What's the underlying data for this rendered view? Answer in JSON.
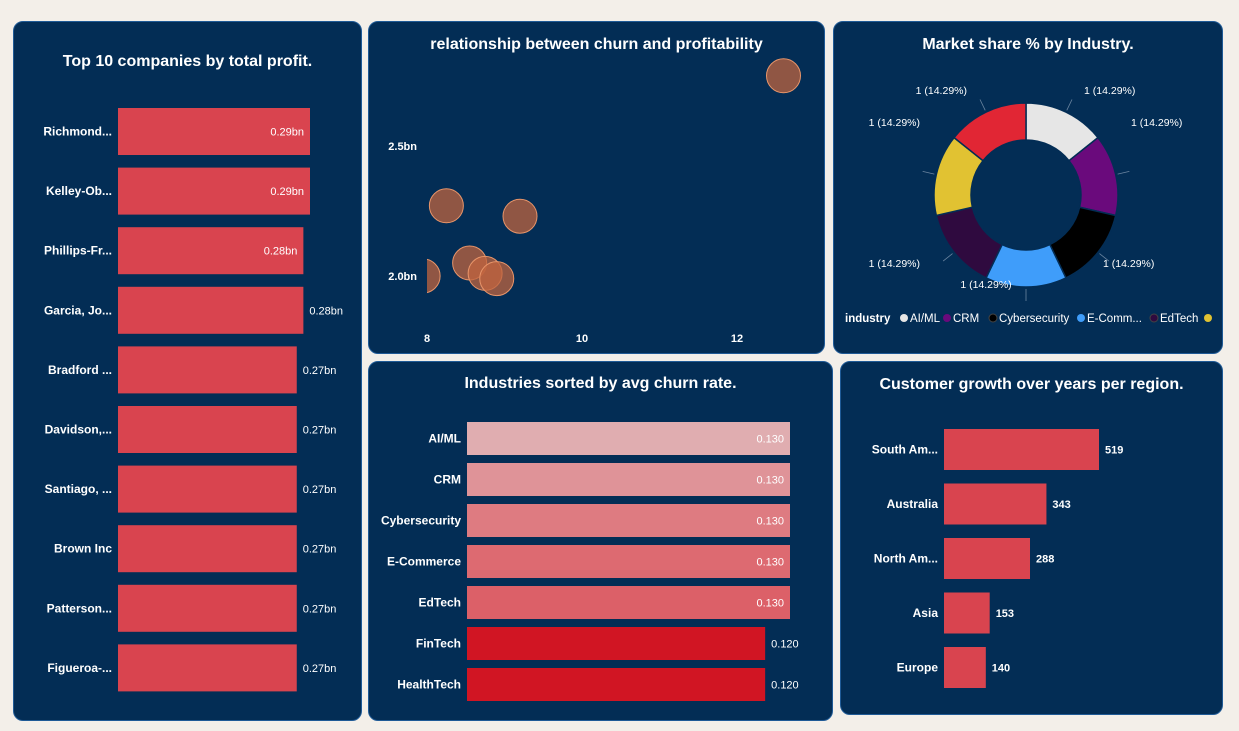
{
  "colors": {
    "card_bg": "#032d55",
    "bar_red": "#d9444f",
    "scatter_fill": "#c0643f",
    "page_bg": "#f3efe9"
  },
  "chart_data": [
    {
      "type": "bar",
      "title": "Top 10 companies by total profit.",
      "categories": [
        "Richmond...",
        "Kelley-Ob...",
        "Phillips-Fr...",
        "Garcia, Jo...",
        "Bradford ...",
        "Davidson,...",
        "Santiago, ...",
        "Brown Inc",
        "Patterson...",
        "Figueroa-..."
      ],
      "values": [
        0.29,
        0.29,
        0.28,
        0.28,
        0.27,
        0.27,
        0.27,
        0.27,
        0.27,
        0.27
      ],
      "labels": [
        "0.29bn",
        "0.29bn",
        "0.28bn",
        "0.28bn",
        "0.27bn",
        "0.27bn",
        "0.27bn",
        "0.27bn",
        "0.27bn",
        "0.27bn"
      ],
      "orientation": "horizontal"
    },
    {
      "type": "scatter",
      "title": "relationship between churn and profitability",
      "x_ticks": [
        "8",
        "10",
        "12"
      ],
      "y_ticks": [
        "2.0bn",
        "2.5bn"
      ],
      "xlim": [
        7.9,
        12.7
      ],
      "ylim": [
        1.93,
        2.8
      ],
      "points": [
        {
          "x": 7.95,
          "y": 2.0
        },
        {
          "x": 8.25,
          "y": 2.27
        },
        {
          "x": 8.55,
          "y": 2.05
        },
        {
          "x": 8.75,
          "y": 2.01
        },
        {
          "x": 8.9,
          "y": 1.99
        },
        {
          "x": 9.2,
          "y": 2.23
        },
        {
          "x": 12.6,
          "y": 2.77
        }
      ]
    },
    {
      "type": "pie",
      "title": "Market share % by Industry.",
      "legend_title": "industry",
      "legend_position": "bottom",
      "slices": [
        {
          "name": "AI/ML",
          "value": 1,
          "label": "1 (14.29%)",
          "color": "#e6e6e6"
        },
        {
          "name": "CRM",
          "value": 1,
          "label": "1 (14.29%)",
          "color": "#6a0a7c"
        },
        {
          "name": "Cybersecurity",
          "value": 1,
          "label": "1 (14.29%)",
          "color": "#000000"
        },
        {
          "name": "E-Commerce",
          "value": 1,
          "label": "1 (14.29%)",
          "color": "#3f9dfa"
        },
        {
          "name": "EdTech",
          "value": 1,
          "label": "1 (14.29%)",
          "color": "#2f0a3f"
        },
        {
          "name": "FinTech",
          "value": 1,
          "label": "1 (14.29%)",
          "color": "#e1c232"
        },
        {
          "name": "HealthTech",
          "value": 1,
          "label": "1 (14.29%)",
          "color": "#e12634"
        }
      ],
      "legend_visible": [
        "AI/ML",
        "CRM",
        "Cybersecurity",
        "E-Comm...",
        "EdTech"
      ]
    },
    {
      "type": "bar",
      "title": "Industries sorted by avg churn rate.",
      "categories": [
        "AI/ML",
        "CRM",
        "Cybersecurity",
        "E-Commerce",
        "EdTech",
        "FinTech",
        "HealthTech"
      ],
      "values": [
        0.13,
        0.13,
        0.13,
        0.13,
        0.13,
        0.12,
        0.12
      ],
      "labels": [
        "0.130",
        "0.130",
        "0.130",
        "0.130",
        "0.130",
        "0.120",
        "0.120"
      ],
      "colors": [
        "#e0adb0",
        "#df9398",
        "#de7b81",
        "#dd6a71",
        "#dc6068",
        "#d11523",
        "#d11523"
      ],
      "orientation": "horizontal"
    },
    {
      "type": "bar",
      "title": "Customer growth over years per region.",
      "categories": [
        "South Am...",
        "Australia",
        "North Am...",
        "Asia",
        "Europe"
      ],
      "values": [
        519,
        343,
        288,
        153,
        140
      ],
      "labels": [
        "519",
        "343",
        "288",
        "153",
        "140"
      ],
      "orientation": "horizontal"
    }
  ]
}
